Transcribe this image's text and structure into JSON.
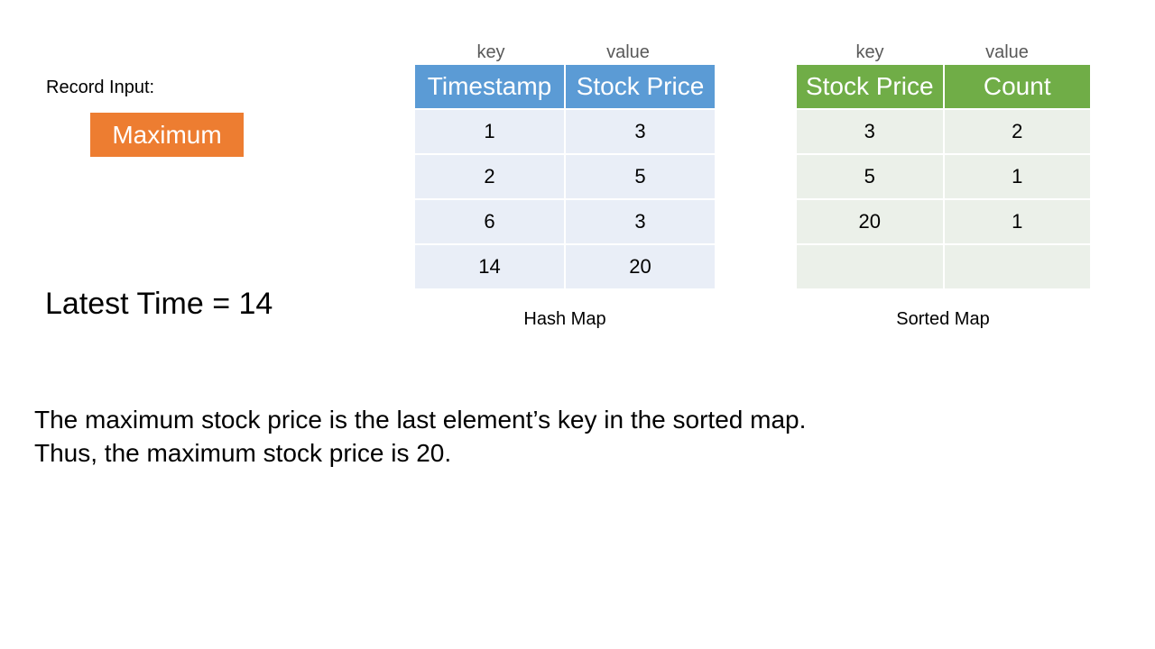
{
  "record_input_label": "Record Input:",
  "input_operation": "Maximum",
  "latest_time": "Latest Time = 14",
  "hash_map": {
    "key_label": "key",
    "value_label": "value",
    "headers": [
      "Timestamp",
      "Stock Price"
    ],
    "rows": [
      [
        "1",
        "3"
      ],
      [
        "2",
        "5"
      ],
      [
        "6",
        "3"
      ],
      [
        "14",
        "20"
      ]
    ],
    "caption": "Hash Map"
  },
  "sorted_map": {
    "key_label": "key",
    "value_label": "value",
    "headers": [
      "Stock Price",
      "Count"
    ],
    "rows": [
      [
        "3",
        "2"
      ],
      [
        "5",
        "1"
      ],
      [
        "20",
        "1"
      ],
      [
        "",
        ""
      ]
    ],
    "caption": "Sorted Map"
  },
  "explanation": {
    "line1": "The maximum stock price is the last element’s key in the sorted map.",
    "line2": "Thus, the maximum stock price is 20."
  },
  "colors": {
    "input_button": "#ed7d31",
    "hash_header": "#5b9bd5",
    "hash_cell": "#e9eef7",
    "sorted_header": "#70ad47",
    "sorted_cell": "#ebf0e9"
  }
}
